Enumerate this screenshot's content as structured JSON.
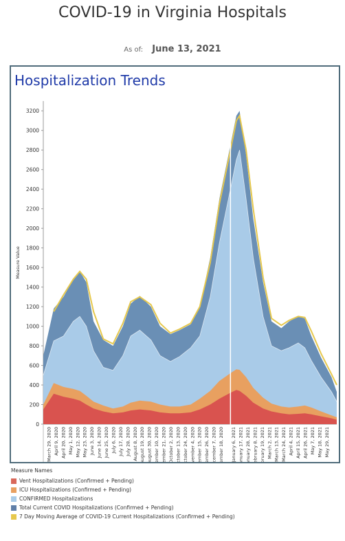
{
  "header": {
    "title": "COVID-19 in Virginia Hospitals",
    "asof_label": "As of:",
    "asof_date": "June 13, 2021"
  },
  "panel": {
    "title": "Hospitalization Trends"
  },
  "chart_data": {
    "type": "area",
    "title": "Hospitalization Trends",
    "xlabel": "",
    "ylabel": "Measure Value",
    "ylim": [
      0,
      3300
    ],
    "yticks": [
      0,
      200,
      400,
      600,
      800,
      1000,
      1200,
      1400,
      1600,
      1800,
      2000,
      2200,
      2400,
      2600,
      2800,
      3000,
      3200
    ],
    "grid": false,
    "x_tick_labels": [
      "March 29, 2020",
      "April 9, 2020",
      "April 20, 2020",
      "May 1, 2020",
      "May 12, 2020",
      "May 23, 2020",
      "June 3, 2020",
      "June 14, 2020",
      "June 25, 2020",
      "July 6, 2020",
      "July 17, 2020",
      "July 28, 2020",
      "August 8, 2020",
      "August 19, 2020",
      "August 30, 2020",
      "September 10, 2020",
      "September 21, 2020",
      "October 2, 2020",
      "October 13, 2020",
      "October 24, 2020",
      "November 4, 2020",
      "November 15, 2020",
      "November 26, 2020",
      "December 7, 2020",
      "December 18, 2020",
      "January 6, 2021",
      "January 17, 2021",
      "January 28, 2021",
      "February 8, 2021",
      "February 19, 2021",
      "March 2, 2021",
      "March 13, 2021",
      "March 24, 2021",
      "April 4, 2021",
      "April 15, 2021",
      "April 26, 2021",
      "May 7, 2021",
      "May 18, 2021",
      "May 29, 2021"
    ],
    "x": [
      "2020-03-20",
      "2020-04-05",
      "2020-04-20",
      "2020-05-05",
      "2020-05-15",
      "2020-05-25",
      "2020-06-05",
      "2020-06-20",
      "2020-07-05",
      "2020-07-20",
      "2020-08-01",
      "2020-08-15",
      "2020-09-01",
      "2020-09-15",
      "2020-10-01",
      "2020-10-15",
      "2020-11-01",
      "2020-11-15",
      "2020-12-01",
      "2020-12-15",
      "2021-01-01",
      "2021-01-10",
      "2021-01-15",
      "2021-01-25",
      "2021-02-05",
      "2021-02-20",
      "2021-03-05",
      "2021-03-20",
      "2021-04-01",
      "2021-04-15",
      "2021-04-25",
      "2021-05-05",
      "2021-05-20",
      "2021-06-05",
      "2021-06-13"
    ],
    "series": [
      {
        "name": "Vent Hospitalizations (Confirmed + Pending)",
        "color": "#d9534f",
        "values": [
          150,
          310,
          280,
          260,
          240,
          200,
          160,
          130,
          110,
          120,
          140,
          150,
          140,
          120,
          110,
          110,
          120,
          150,
          200,
          260,
          320,
          350,
          340,
          290,
          220,
          160,
          130,
          110,
          100,
          105,
          110,
          100,
          80,
          60,
          45
        ]
      },
      {
        "name": "ICU Hospitalizations (Confirmed + Pending)",
        "color": "#e8a060",
        "values": [
          200,
          420,
          380,
          360,
          340,
          290,
          230,
          190,
          160,
          180,
          220,
          240,
          230,
          200,
          180,
          180,
          200,
          260,
          340,
          440,
          520,
          560,
          555,
          480,
          370,
          270,
          210,
          180,
          170,
          180,
          190,
          170,
          130,
          90,
          70
        ]
      },
      {
        "name": "CONFIRMED Hospitalizations",
        "color": "#a9cbe8",
        "values": [
          500,
          850,
          900,
          1050,
          1100,
          1000,
          750,
          580,
          550,
          700,
          900,
          960,
          860,
          700,
          640,
          690,
          780,
          900,
          1300,
          1850,
          2400,
          2700,
          2800,
          2300,
          1700,
          1100,
          800,
          750,
          780,
          830,
          780,
          650,
          480,
          330,
          230
        ]
      },
      {
        "name": "Total Current COVID Hospitalizations (Confirmed + Pending)",
        "color": "#6a8fb5",
        "values": [
          700,
          1180,
          1300,
          1480,
          1560,
          1450,
          1050,
          860,
          800,
          1000,
          1230,
          1310,
          1200,
          1000,
          920,
          960,
          1020,
          1200,
          1700,
          2300,
          2850,
          3150,
          3200,
          2750,
          2100,
          1450,
          1050,
          980,
          1050,
          1100,
          1080,
          900,
          680,
          480,
          330
        ]
      },
      {
        "name": "7 Day Moving Average of COVID-19 Current Hospitalizations (Confirmed + Pending)",
        "color": "#e6c84d",
        "values": [
          null,
          1150,
          1320,
          1480,
          1560,
          1480,
          1150,
          870,
          820,
          1030,
          1250,
          1300,
          1220,
          1030,
          930,
          970,
          1030,
          1200,
          1650,
          2250,
          2800,
          3100,
          3150,
          2800,
          2200,
          1500,
          1080,
          1010,
          1060,
          1100,
          1090,
          950,
          720,
          510,
          400
        ]
      }
    ]
  },
  "legend": {
    "title": "Measure Names",
    "items": [
      {
        "label": "Vent Hospitalizations (Confirmed + Pending)",
        "color": "#d9685a"
      },
      {
        "label": "ICU Hospitalizations (Confirmed + Pending)",
        "color": "#e8a060"
      },
      {
        "label": "CONFIRMED Hospitalizations",
        "color": "#a9cbe8"
      },
      {
        "label": "Total Current COVID Hospitalizations (Confirmed + Pending)",
        "color": "#5f7fa8"
      },
      {
        "label": "7 Day Moving Average of COVID-19 Current Hospitalizations (Confirmed + Pending)",
        "color": "#e6c84d"
      }
    ]
  }
}
